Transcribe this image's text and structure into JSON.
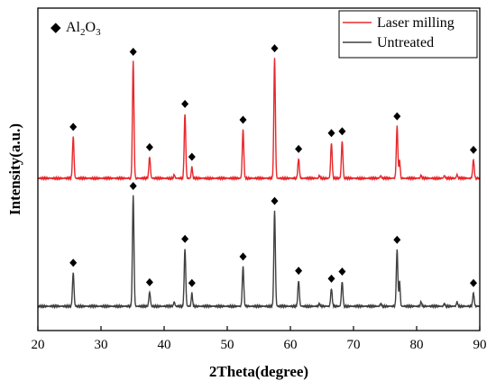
{
  "chart_data": {
    "type": "line",
    "title": "",
    "xlabel": "2Theta(degree)",
    "ylabel": "Intensity(a.u.)",
    "xlim": [
      20,
      90
    ],
    "x_ticks": [
      20,
      30,
      40,
      50,
      60,
      70,
      80,
      90
    ],
    "y_ticks_shown": false,
    "grid": false,
    "legend_position": "top-right",
    "marker_legend": {
      "symbol": "◆",
      "label_parts": [
        "Al",
        "2",
        "O",
        "3"
      ]
    },
    "series": [
      {
        "name": "Laser milling",
        "color": "#e8282b",
        "offset": 1.45,
        "baseline": 0.0,
        "peaks": [
          {
            "x": 25.6,
            "y": 0.47,
            "w": 0.12
          },
          {
            "x": 35.1,
            "y": 1.32,
            "w": 0.12
          },
          {
            "x": 37.7,
            "y": 0.24,
            "w": 0.12
          },
          {
            "x": 41.6,
            "y": 0.04,
            "w": 0.1
          },
          {
            "x": 43.3,
            "y": 0.73,
            "w": 0.12
          },
          {
            "x": 44.4,
            "y": 0.13,
            "w": 0.1
          },
          {
            "x": 52.5,
            "y": 0.55,
            "w": 0.12
          },
          {
            "x": 57.5,
            "y": 1.36,
            "w": 0.12
          },
          {
            "x": 61.3,
            "y": 0.22,
            "w": 0.12
          },
          {
            "x": 64.6,
            "y": 0.03,
            "w": 0.1
          },
          {
            "x": 66.5,
            "y": 0.4,
            "w": 0.12
          },
          {
            "x": 68.2,
            "y": 0.42,
            "w": 0.12
          },
          {
            "x": 74.3,
            "y": 0.03,
            "w": 0.1
          },
          {
            "x": 76.9,
            "y": 0.59,
            "w": 0.12
          },
          {
            "x": 77.3,
            "y": 0.2,
            "w": 0.1
          },
          {
            "x": 80.7,
            "y": 0.03,
            "w": 0.1
          },
          {
            "x": 84.4,
            "y": 0.03,
            "w": 0.1
          },
          {
            "x": 86.4,
            "y": 0.04,
            "w": 0.1
          },
          {
            "x": 89.0,
            "y": 0.21,
            "w": 0.12
          }
        ],
        "markers": [
          25.6,
          35.1,
          37.7,
          43.3,
          44.4,
          52.5,
          57.5,
          61.3,
          66.5,
          68.2,
          76.9,
          89.0
        ]
      },
      {
        "name": "Untreated",
        "color": "#404040",
        "offset": 0.0,
        "baseline": 0.0,
        "peaks": [
          {
            "x": 25.6,
            "y": 0.38,
            "w": 0.12
          },
          {
            "x": 35.1,
            "y": 1.25,
            "w": 0.12
          },
          {
            "x": 37.7,
            "y": 0.16,
            "w": 0.12
          },
          {
            "x": 41.6,
            "y": 0.05,
            "w": 0.1
          },
          {
            "x": 43.3,
            "y": 0.65,
            "w": 0.12
          },
          {
            "x": 44.4,
            "y": 0.15,
            "w": 0.1
          },
          {
            "x": 52.5,
            "y": 0.45,
            "w": 0.12
          },
          {
            "x": 57.5,
            "y": 1.08,
            "w": 0.12
          },
          {
            "x": 61.3,
            "y": 0.29,
            "w": 0.12
          },
          {
            "x": 64.6,
            "y": 0.03,
            "w": 0.1
          },
          {
            "x": 66.5,
            "y": 0.2,
            "w": 0.12
          },
          {
            "x": 68.2,
            "y": 0.28,
            "w": 0.12
          },
          {
            "x": 74.3,
            "y": 0.03,
            "w": 0.1
          },
          {
            "x": 76.9,
            "y": 0.64,
            "w": 0.12
          },
          {
            "x": 77.3,
            "y": 0.28,
            "w": 0.1
          },
          {
            "x": 80.7,
            "y": 0.05,
            "w": 0.1
          },
          {
            "x": 84.4,
            "y": 0.03,
            "w": 0.1
          },
          {
            "x": 86.4,
            "y": 0.05,
            "w": 0.1
          },
          {
            "x": 89.0,
            "y": 0.15,
            "w": 0.12
          }
        ],
        "markers": [
          25.6,
          35.1,
          37.7,
          43.3,
          44.4,
          52.5,
          57.5,
          61.3,
          66.5,
          68.2,
          76.9,
          89.0
        ]
      }
    ]
  }
}
